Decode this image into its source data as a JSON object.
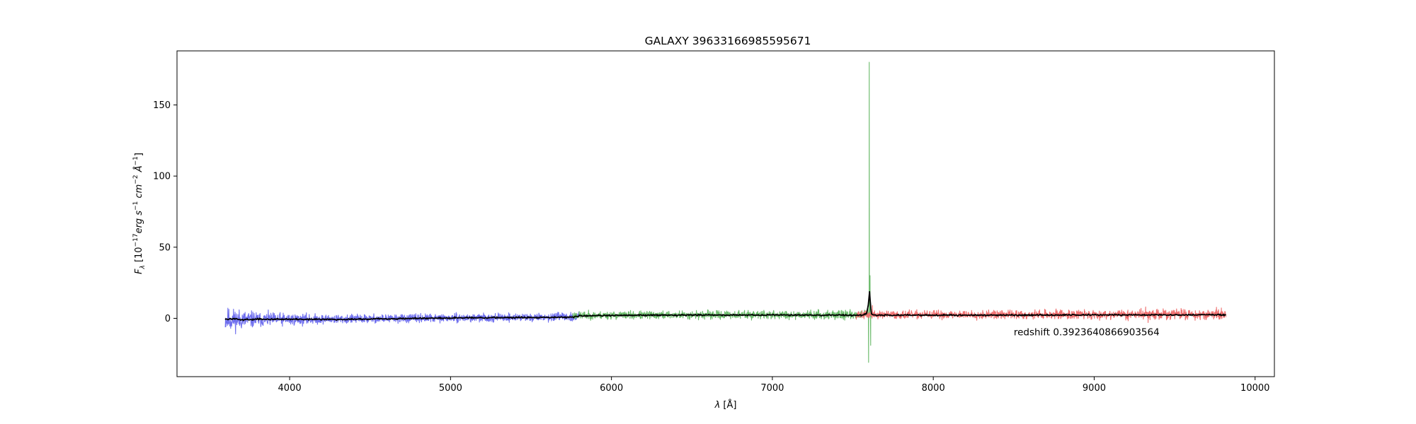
{
  "chart_data": {
    "type": "line",
    "title": "GALAXY 39633166985595671",
    "xlabel": "λ [Å]",
    "ylabel": "F_λ [10^-17 erg s^-1 cm^-2 Å^-1]",
    "ylabel_parts": {
      "prefix": "F",
      "prefix_sub": "λ",
      "unit_pre": " [10",
      "unit_exp1": "−17",
      "unit_erg": "erg s",
      "unit_exp2": "−1",
      "unit_cm": " cm",
      "unit_exp3": "−2",
      "unit_ang": " Å",
      "unit_exp4": "−1",
      "unit_post": "]"
    },
    "xlabel_parts": {
      "lambda": "λ",
      "unit": " [Å]"
    },
    "xlim": [
      3300,
      10120
    ],
    "ylim": [
      -41,
      188
    ],
    "xticks": [
      4000,
      5000,
      6000,
      7000,
      8000,
      9000,
      10000
    ],
    "yticks": [
      0,
      50,
      100,
      150
    ],
    "annotation": {
      "text": "redshift 0.3923640866903564",
      "x": 8500,
      "y": -12
    },
    "grid": false,
    "series": [
      {
        "name": "b",
        "color": "#7070ee",
        "range": [
          3600,
          5800
        ],
        "base": [
          [
            3600,
            -1.0
          ],
          [
            4000,
            -0.8
          ],
          [
            5000,
            0.2
          ],
          [
            5800,
            1.0
          ]
        ],
        "noise": [
          [
            3600,
            6.0
          ],
          [
            3800,
            3.6
          ],
          [
            4200,
            2.3
          ],
          [
            5000,
            1.9
          ],
          [
            5800,
            1.9
          ]
        ],
        "spikes": []
      },
      {
        "name": "r",
        "color": "#6aba6a",
        "range": [
          5760,
          7620
        ],
        "base": [
          [
            5760,
            2.0
          ],
          [
            6500,
            2.4
          ],
          [
            7600,
            2.5
          ]
        ],
        "noise": [
          [
            5760,
            1.9
          ],
          [
            7620,
            2.1
          ]
        ],
        "spikes": [
          [
            7602,
            180.0
          ],
          [
            7598,
            -31.0
          ],
          [
            7607,
            30.0
          ],
          [
            7611,
            -19.0
          ],
          [
            7594,
            8.0
          ]
        ]
      },
      {
        "name": "z",
        "color": "#ee7070",
        "range": [
          7520,
          9820
        ],
        "base": [
          [
            7520,
            2.4
          ],
          [
            8500,
            2.6
          ],
          [
            9820,
            2.8
          ]
        ],
        "noise": [
          [
            7520,
            1.9
          ],
          [
            9200,
            2.3
          ],
          [
            9820,
            2.8
          ]
        ],
        "spikes": [
          [
            7622,
            9.0
          ],
          [
            9320,
            8.0
          ],
          [
            9335,
            -3.0
          ],
          [
            9540,
            7.0
          ],
          [
            9565,
            6.0
          ]
        ]
      },
      {
        "name": "model",
        "color": "#000000",
        "range": [
          3600,
          9820
        ],
        "base": [
          [
            3600,
            -0.8
          ],
          [
            3650,
            -0.2
          ],
          [
            3700,
            -1.0
          ],
          [
            3800,
            -0.6
          ],
          [
            4000,
            -0.6
          ],
          [
            4350,
            -0.7
          ],
          [
            5000,
            0.3
          ],
          [
            5760,
            0.8
          ],
          [
            5800,
            1.8
          ],
          [
            6200,
            2.2
          ],
          [
            7000,
            2.4
          ],
          [
            7550,
            2.1
          ],
          [
            7585,
            3.5
          ],
          [
            7595,
            8.0
          ],
          [
            7600,
            14.0
          ],
          [
            7603,
            20.0
          ],
          [
            7607,
            14.0
          ],
          [
            7615,
            3.0
          ],
          [
            7650,
            2.2
          ],
          [
            8500,
            2.3
          ],
          [
            9800,
            2.5
          ]
        ],
        "noise": [
          [
            3600,
            0.35
          ],
          [
            9820,
            0.35
          ]
        ],
        "spikes": []
      }
    ]
  }
}
